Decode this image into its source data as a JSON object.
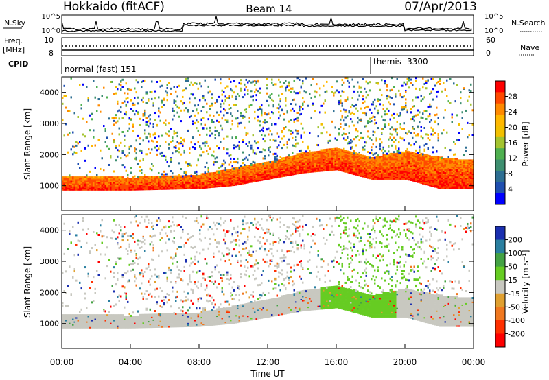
{
  "header": {
    "station": "Hokkaido (fitACF)",
    "beam": "Beam 14",
    "date": "07/Apr/2013"
  },
  "noise_panel": {
    "left_label": "N.Sky",
    "right_label": "N.Search",
    "left_ticks": [
      "10^5",
      "10^0"
    ],
    "right_ticks": [
      "10^5",
      "10^0"
    ]
  },
  "freq_panel": {
    "left_label_1": "Freq.",
    "left_label_2": "[MHz]",
    "left_ticks": [
      "10",
      "8"
    ],
    "right_label": "Nave",
    "right_ticks": [
      "60",
      "0"
    ]
  },
  "cpid": {
    "label": "CPID",
    "segments": [
      {
        "start_hour": 0,
        "text": "normal (fast) 151"
      },
      {
        "start_hour": 18,
        "text": "themis -3300"
      }
    ]
  },
  "x_axis": {
    "label": "Time UT",
    "ticks": [
      "00:00",
      "04:00",
      "08:00",
      "12:00",
      "16:00",
      "20:00",
      "00:00"
    ],
    "range_hours": [
      0,
      24
    ]
  },
  "chart_data": [
    {
      "type": "heatmap",
      "name": "power",
      "ylabel": "Slant Range [km]",
      "ylim": [
        200,
        4500
      ],
      "yticks": [
        "1000",
        "2000",
        "3000",
        "4000"
      ],
      "colorbar_label": "Power [dB]",
      "colorbar_ticks": [
        "28",
        "24",
        "20",
        "16",
        "12",
        "8",
        "4"
      ],
      "colorbar_colors": [
        "#ff0000",
        "#ff4a00",
        "#ff8a00",
        "#ffb800",
        "#f2c000",
        "#a4c430",
        "#4fb050",
        "#3e8f70",
        "#2d6e92",
        "#1f4fb0",
        "#0000ff"
      ],
      "main_echo_band_km": [
        {
          "hour": 0,
          "lower": 850,
          "upper": 1300
        },
        {
          "hour": 4,
          "lower": 850,
          "upper": 1250
        },
        {
          "hour": 8,
          "lower": 900,
          "upper": 1350
        },
        {
          "hour": 10,
          "lower": 1000,
          "upper": 1550
        },
        {
          "hour": 12,
          "lower": 1200,
          "upper": 1750
        },
        {
          "hour": 14,
          "lower": 1400,
          "upper": 2050
        },
        {
          "hour": 16,
          "lower": 1500,
          "upper": 2200
        },
        {
          "hour": 18,
          "lower": 1200,
          "upper": 1900
        },
        {
          "hour": 20,
          "lower": 1200,
          "upper": 2100
        },
        {
          "hour": 22,
          "lower": 900,
          "upper": 1900
        },
        {
          "hour": 24,
          "lower": 900,
          "upper": 1800
        }
      ]
    },
    {
      "type": "heatmap",
      "name": "velocity",
      "ylabel": "Slant Range [km]",
      "ylim": [
        200,
        4500
      ],
      "yticks": [
        "1000",
        "2000",
        "3000",
        "4000"
      ],
      "colorbar_label": "Velocity [m s⁻¹]",
      "colorbar_ticks": [
        "200",
        "100",
        "50",
        "15",
        "-15",
        "-50",
        "-100",
        "-200"
      ],
      "colorbar_colors": [
        "#1a2fb0",
        "#2a7fa0",
        "#44a244",
        "#66cc22",
        "#c8c8c0",
        "#e0a030",
        "#f07820",
        "#ff3000",
        "#ff0000"
      ]
    }
  ]
}
